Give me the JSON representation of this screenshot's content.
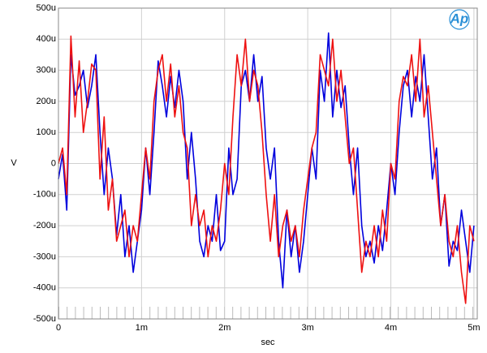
{
  "chart_data": {
    "type": "line",
    "logo": "Ap",
    "xlabel": "sec",
    "ylabel": "V",
    "grid": true,
    "xlim": [
      0,
      0.00504
    ],
    "ylim": [
      -0.0005,
      0.0005
    ],
    "xticks": [
      0,
      {
        "value": 0.001,
        "label": "1m"
      },
      {
        "value": 0.002,
        "label": "2m"
      },
      {
        "value": 0.003,
        "label": "3m"
      },
      {
        "value": 0.004,
        "label": "4m"
      },
      {
        "value": 0.005,
        "label": "5m"
      }
    ],
    "yticks": [
      {
        "value": -0.0005,
        "label": "-500u"
      },
      {
        "value": -0.0004,
        "label": "-400u"
      },
      {
        "value": -0.0003,
        "label": "-300u"
      },
      {
        "value": -0.0002,
        "label": "-200u"
      },
      {
        "value": -0.0001,
        "label": "-100u"
      },
      0,
      {
        "value": 0.0001,
        "label": "100u"
      },
      {
        "value": 0.0002,
        "label": "200u"
      },
      {
        "value": 0.0003,
        "label": "300u"
      },
      {
        "value": 0.0004,
        "label": "400u"
      },
      {
        "value": 0.0005,
        "label": "500u"
      }
    ],
    "x": [
      0,
      5e-05,
      0.0001,
      0.00015,
      0.0002,
      0.00025,
      0.0003,
      0.00035,
      0.0004,
      0.00045,
      0.0005,
      0.00055,
      0.0006,
      0.00065,
      0.0007,
      0.00075,
      0.0008,
      0.00085,
      0.0009,
      0.00095,
      0.001,
      0.00105,
      0.0011,
      0.00115,
      0.0012,
      0.00125,
      0.0013,
      0.00135,
      0.0014,
      0.00145,
      0.0015,
      0.00155,
      0.0016,
      0.00165,
      0.0017,
      0.00175,
      0.0018,
      0.00185,
      0.0019,
      0.00195,
      0.002,
      0.00205,
      0.0021,
      0.00215,
      0.0022,
      0.00225,
      0.0023,
      0.00235,
      0.0024,
      0.00245,
      0.0025,
      0.00255,
      0.0026,
      0.00265,
      0.0027,
      0.00275,
      0.0028,
      0.00285,
      0.0029,
      0.00295,
      0.003,
      0.00305,
      0.0031,
      0.00315,
      0.0032,
      0.00325,
      0.0033,
      0.00335,
      0.0034,
      0.00345,
      0.0035,
      0.00355,
      0.0036,
      0.00365,
      0.0037,
      0.00375,
      0.0038,
      0.00385,
      0.0039,
      0.00395,
      0.004,
      0.00405,
      0.0041,
      0.00415,
      0.0042,
      0.00425,
      0.0043,
      0.00435,
      0.0044,
      0.00445,
      0.0045,
      0.00455,
      0.0046,
      0.00465,
      0.0047,
      0.00475,
      0.0048,
      0.00485,
      0.0049,
      0.00495,
      0.005
    ],
    "series": [
      {
        "color": "#0000dd",
        "values": [
          -5e-05,
          3e-05,
          -0.00015,
          0.00035,
          0.00022,
          0.00025,
          0.0003,
          0.00018,
          0.00025,
          0.00035,
          0.0001,
          -0.0001,
          5e-05,
          -5e-05,
          -0.00023,
          -0.0001,
          -0.0003,
          -0.0002,
          -0.00035,
          -0.00025,
          -0.00015,
          5e-05,
          -0.0001,
          0.0001,
          0.00033,
          0.00025,
          0.00015,
          0.00028,
          0.00018,
          0.0003,
          0.0002,
          -5e-05,
          0.0001,
          -5e-05,
          -0.00025,
          -0.0003,
          -0.0002,
          -0.00025,
          -0.0001,
          -0.00028,
          -0.00025,
          5e-05,
          -0.0001,
          -5e-05,
          0.00025,
          0.0003,
          0.0002,
          0.00035,
          0.0002,
          0.00028,
          5e-05,
          -5e-05,
          5e-05,
          -0.00025,
          -0.0004,
          -0.00015,
          -0.0003,
          -0.0002,
          -0.00035,
          -0.00025,
          -0.0001,
          5e-05,
          -5e-05,
          0.0003,
          0.0002,
          0.00042,
          0.00015,
          0.0003,
          0.00018,
          0.00025,
          5e-05,
          -0.0001,
          5e-05,
          -0.0002,
          -0.0003,
          -0.00025,
          -0.00032,
          -0.0002,
          -0.00028,
          -0.00015,
          0,
          -0.0001,
          0.0001,
          0.00025,
          0.0003,
          0.00015,
          0.00028,
          0.0002,
          0.00035,
          0.00015,
          -5e-05,
          5e-05,
          -0.0002,
          -0.0001,
          -0.00033,
          -0.00025,
          -0.00028,
          -0.00015,
          -0.00025,
          -0.00035,
          -0.0002
        ]
      },
      {
        "color": "#ee1111",
        "values": [
          0,
          5e-05,
          -0.0001,
          0.00041,
          0.00015,
          0.00033,
          0.0001,
          0.0002,
          0.00032,
          0.0003,
          -5e-05,
          0.00015,
          -0.00015,
          -5e-05,
          -0.00025,
          -0.0002,
          -0.00015,
          -0.0003,
          -0.0002,
          -0.00025,
          -0.0001,
          5e-05,
          -5e-05,
          0.0002,
          0.0003,
          0.00035,
          0.0002,
          0.00032,
          0.00015,
          0.00025,
          0.0001,
          5e-05,
          -0.0002,
          -0.0001,
          -0.0002,
          -0.00015,
          -0.0003,
          -0.0002,
          -0.00025,
          -0.00015,
          0,
          -0.0001,
          0.00015,
          0.00035,
          0.00025,
          0.0004,
          0.0002,
          0.0003,
          0.00025,
          0.0001,
          -0.0001,
          -0.00025,
          -0.0001,
          -0.0003,
          -0.0002,
          -0.00015,
          -0.00025,
          -0.0002,
          -0.0003,
          -0.00015,
          -5e-05,
          5e-05,
          0.0001,
          0.00035,
          0.0003,
          0.00025,
          0.0004,
          0.0002,
          0.0003,
          0.00015,
          0,
          5e-05,
          -0.00015,
          -0.00035,
          -0.00025,
          -0.0003,
          -0.0002,
          -0.0003,
          -0.00015,
          -0.00025,
          0,
          -5e-05,
          0.0002,
          0.00028,
          0.00025,
          0.00035,
          0.0002,
          0.0004,
          0.00015,
          0.00025,
          0.0001,
          -5e-05,
          -0.0002,
          -0.0001,
          -0.00025,
          -0.0003,
          -0.0002,
          -0.00035,
          -0.00045,
          -0.0002,
          -0.00025
        ]
      }
    ]
  }
}
